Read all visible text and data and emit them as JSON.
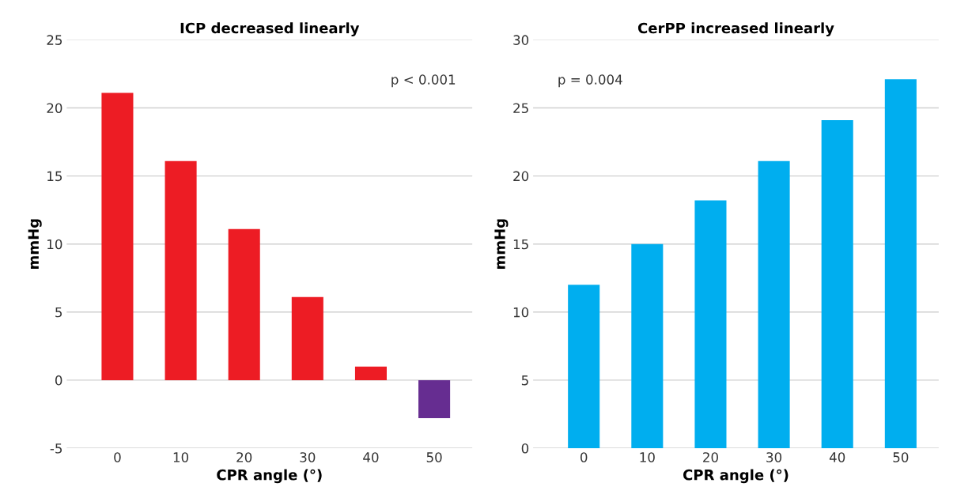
{
  "chart_data": [
    {
      "type": "bar",
      "title": "ICP decreased linearly",
      "xlabel": "CPR angle (°)",
      "ylabel": "mmHg",
      "categories": [
        "0",
        "10",
        "20",
        "30",
        "40",
        "50"
      ],
      "values": [
        21.1,
        16.1,
        11.1,
        6.1,
        1.0,
        -2.8
      ],
      "colors": [
        "#ed1c24",
        "#ed1c24",
        "#ed1c24",
        "#ed1c24",
        "#ed1c24",
        "#662d91"
      ],
      "ylim": [
        -5,
        25
      ],
      "yticks": [
        -5,
        0,
        5,
        10,
        15,
        20,
        25
      ],
      "grid": "y",
      "annotations": [
        "p < 0.001"
      ]
    },
    {
      "type": "bar",
      "title": "CerPP increased linearly",
      "xlabel": "CPR angle (°)",
      "ylabel": "mmHg",
      "categories": [
        "0",
        "10",
        "20",
        "30",
        "40",
        "50"
      ],
      "values": [
        12.0,
        15.0,
        18.2,
        21.1,
        24.1,
        27.1
      ],
      "colors": [
        "#00aeef",
        "#00aeef",
        "#00aeef",
        "#00aeef",
        "#00aeef",
        "#00aeef"
      ],
      "ylim": [
        0,
        30
      ],
      "yticks": [
        0,
        5,
        10,
        15,
        20,
        25,
        30
      ],
      "grid": "y",
      "annotations": [
        "p = 0.004"
      ]
    }
  ]
}
